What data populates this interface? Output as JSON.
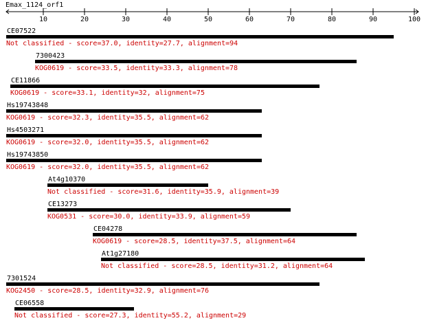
{
  "chart_data": {
    "type": "alignment",
    "title": "Emax_1124_orf1",
    "xlim": [
      1,
      101
    ],
    "xticks": [
      10,
      20,
      30,
      40,
      50,
      60,
      70,
      80,
      90,
      100
    ],
    "bar_color": "#000000",
    "label_color": "#cc0000",
    "hits": [
      {
        "name": "CE07522",
        "start": 1,
        "end": 95,
        "label": "Not classified - score=37.0, identity=27.7, alignment=94"
      },
      {
        "name": "7300423",
        "start": 8,
        "end": 86,
        "label": "KOG0619 - score=33.5, identity=33.3, alignment=78"
      },
      {
        "name": "CE11866",
        "start": 2,
        "end": 77,
        "label": "KOG0619 - score=33.1, identity=32, alignment=75"
      },
      {
        "name": "Hs19743848",
        "start": 1,
        "end": 63,
        "label": "KOG0619 - score=32.3, identity=35.5, alignment=62"
      },
      {
        "name": "Hs4503271",
        "start": 1,
        "end": 63,
        "label": "KOG0619 - score=32.0, identity=35.5, alignment=62"
      },
      {
        "name": "Hs19743850",
        "start": 1,
        "end": 63,
        "label": "KOG0619 - score=32.0, identity=35.5, alignment=62"
      },
      {
        "name": "At4g10370",
        "start": 11,
        "end": 50,
        "label": "Not classified - score=31.6, identity=35.9, alignment=39"
      },
      {
        "name": "CE13273",
        "start": 11,
        "end": 70,
        "label": "KOG0531 - score=30.0, identity=33.9, alignment=59"
      },
      {
        "name": "CE04278",
        "start": 22,
        "end": 86,
        "label": "KOG0619 - score=28.5, identity=37.5, alignment=64"
      },
      {
        "name": "At1g27180",
        "start": 24,
        "end": 88,
        "label": "Not classified - score=28.5, identity=31.2, alignment=64"
      },
      {
        "name": "7301524",
        "start": 1,
        "end": 77,
        "label": "KOG2450 - score=28.5, identity=32.9, alignment=76"
      },
      {
        "name": "CE06558",
        "start": 3,
        "end": 32,
        "label": "Not classified - score=27.3, identity=55.2, alignment=29"
      }
    ]
  }
}
